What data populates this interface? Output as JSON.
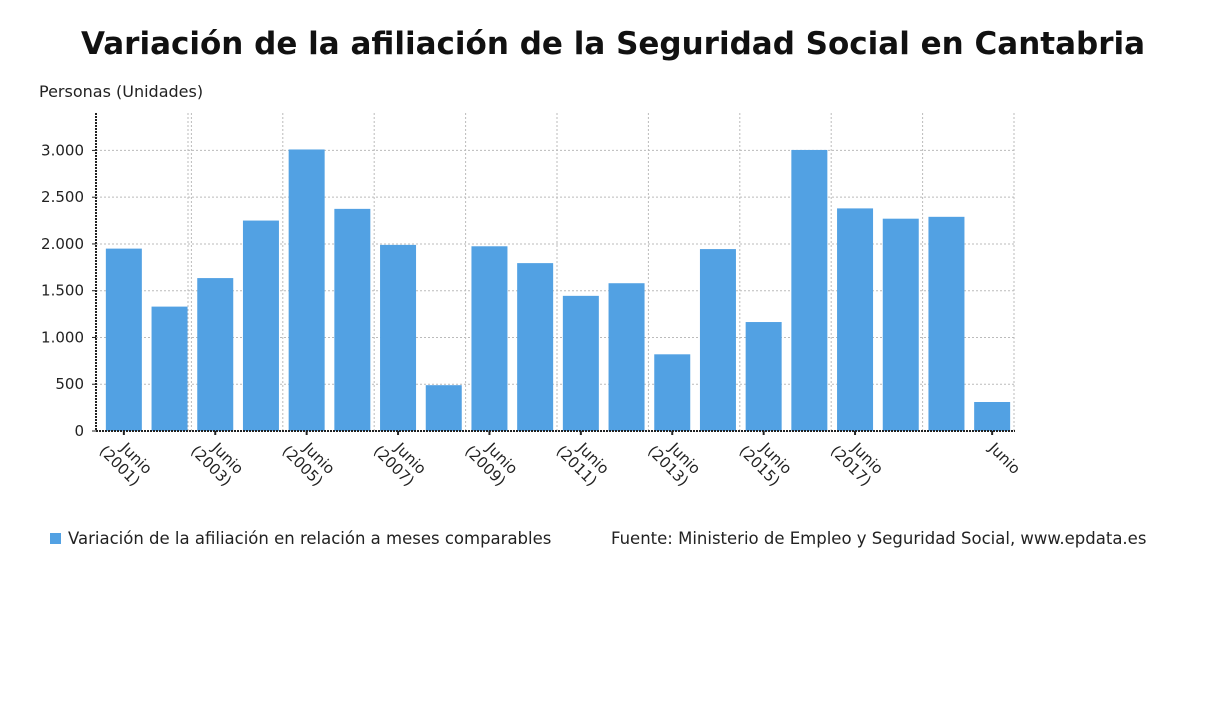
{
  "chart_data": {
    "type": "bar",
    "title": "Variación de la afiliación de la Seguridad Social en Cantabria",
    "ylabel": "Personas (Unidades)",
    "xlabel": "",
    "ylim": [
      0,
      3400
    ],
    "yticks": [
      0,
      500,
      1000,
      1500,
      2000,
      2500,
      3000
    ],
    "ytick_labels": [
      "0",
      "500",
      "1.000",
      "1.500",
      "2.000",
      "2.500",
      "3.000"
    ],
    "grid": true,
    "categories": [
      "2001",
      "2002",
      "2003",
      "2004",
      "2005",
      "2006",
      "2007",
      "2008",
      "2009",
      "2010",
      "2011",
      "2012",
      "2013",
      "2014",
      "2015",
      "2016",
      "2017",
      "2018",
      "2019",
      "2020"
    ],
    "xtick_labels": [
      {
        "index": 0,
        "line1": "Junio",
        "line2": "(2001)"
      },
      {
        "index": 2,
        "line1": "Junio",
        "line2": "(2003)"
      },
      {
        "index": 4,
        "line1": "Junio",
        "line2": "(2005)"
      },
      {
        "index": 6,
        "line1": "Junio",
        "line2": "(2007)"
      },
      {
        "index": 8,
        "line1": "Junio",
        "line2": "(2009)"
      },
      {
        "index": 10,
        "line1": "Junio",
        "line2": "(2011)"
      },
      {
        "index": 12,
        "line1": "Junio",
        "line2": "(2013)"
      },
      {
        "index": 14,
        "line1": "Junio",
        "line2": "(2015)"
      },
      {
        "index": 16,
        "line1": "Junio",
        "line2": "(2017)"
      },
      {
        "index": 19,
        "line1": "Junio",
        "line2": ""
      }
    ],
    "series": [
      {
        "name": "Variación de la afiliación en relación a meses comparables",
        "color": "#52a1e3",
        "values": [
          1950,
          1330,
          1635,
          2250,
          3010,
          2375,
          1990,
          490,
          1975,
          1795,
          1445,
          1580,
          820,
          1945,
          1165,
          3005,
          2380,
          2270,
          2290,
          310
        ]
      }
    ],
    "legend_placement": "bottom-left",
    "source": "Fuente: Ministerio de Empleo y Seguridad Social, www.epdata.es"
  }
}
